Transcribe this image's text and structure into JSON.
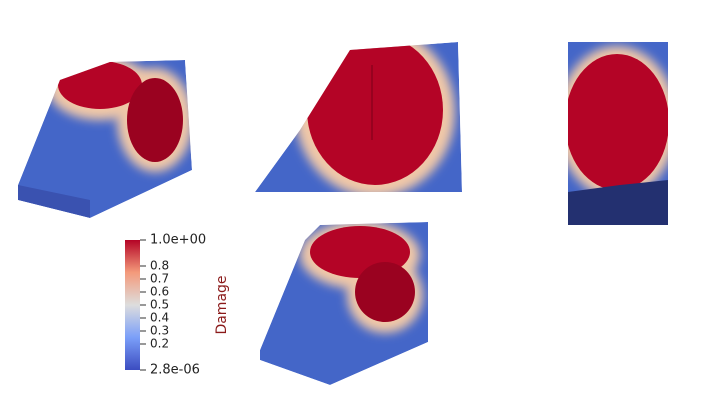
{
  "colorbar": {
    "title": "Damage",
    "ticks": [
      {
        "value": 1.0,
        "label": "1.0e+00"
      },
      0.8,
      0.7,
      0.6,
      0.5,
      0.4,
      0.3,
      0.2,
      {
        "value": 2.8e-06,
        "label": "2.8e-06"
      }
    ]
  }
}
